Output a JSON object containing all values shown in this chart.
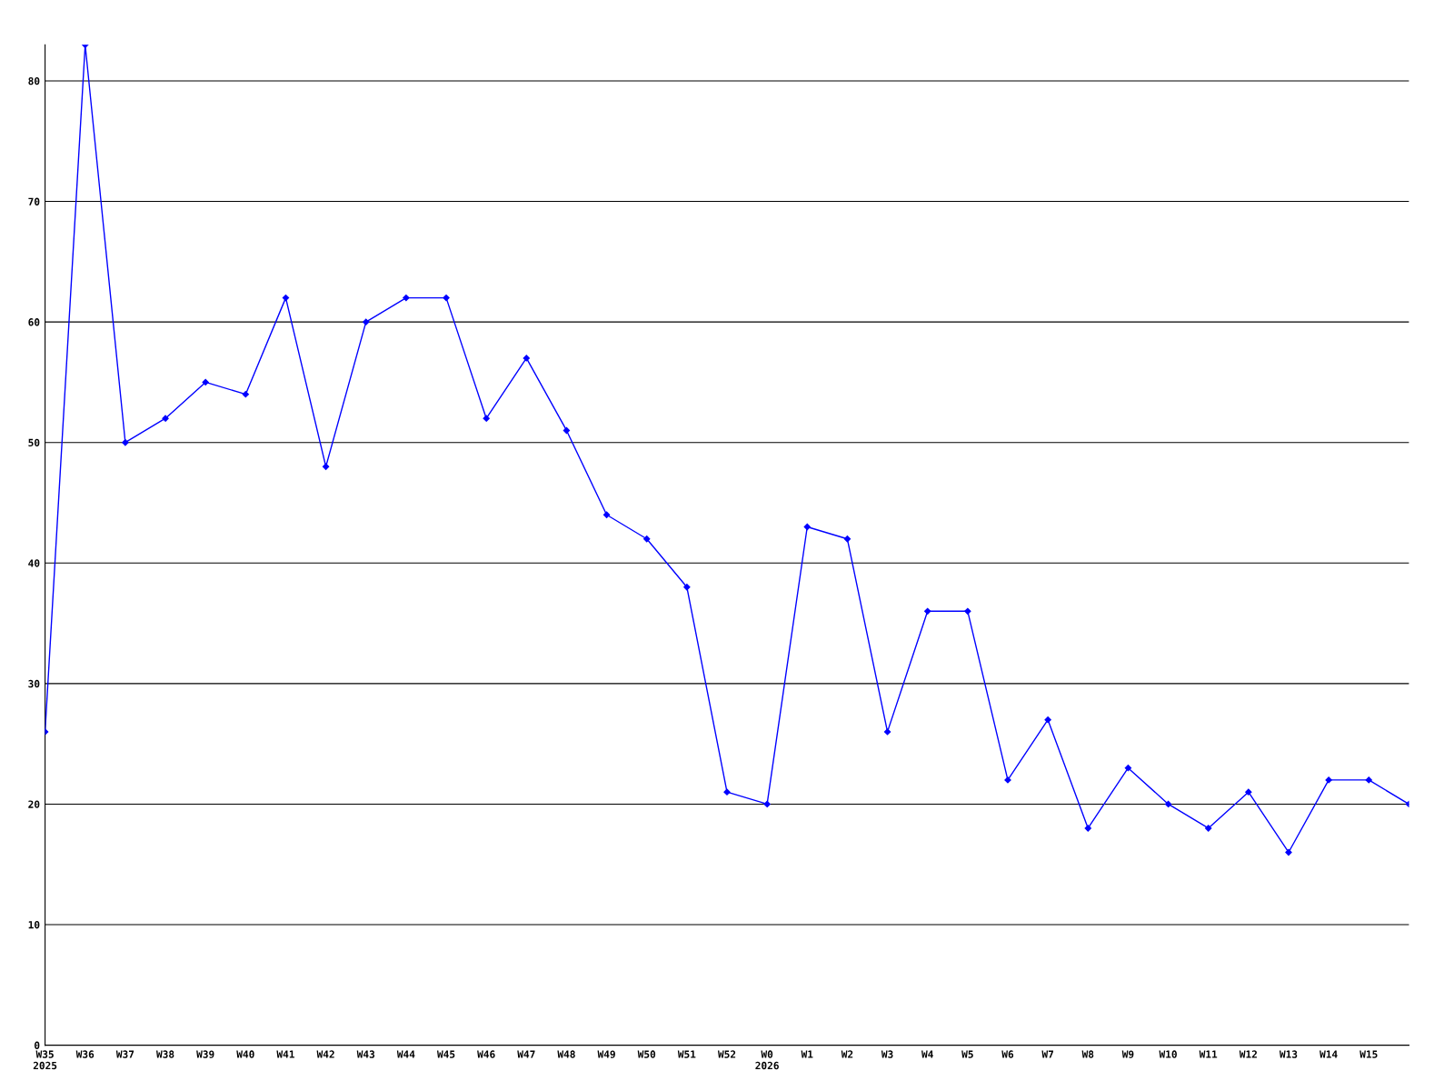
{
  "chart_data": {
    "type": "line",
    "categories": [
      "W35\n2025",
      "W36",
      "W37",
      "W38",
      "W39",
      "W40",
      "W41",
      "W42",
      "W43",
      "W44",
      "W45",
      "W46",
      "W47",
      "W48",
      "W49",
      "W50",
      "W51",
      "W52",
      "W0\n2026",
      "W1",
      "W2",
      "W3",
      "W4",
      "W5",
      "W6",
      "W7",
      "W8",
      "W9",
      "W10",
      "W11",
      "W12",
      "W13",
      "W14",
      "W15",
      null
    ],
    "series": [
      {
        "color": "#0000ff",
        "values": [
          26,
          83,
          50,
          52,
          55,
          54,
          62,
          48,
          60,
          62,
          62,
          52,
          57,
          51,
          44,
          42,
          38,
          21,
          20,
          43,
          42,
          26,
          36,
          36,
          22,
          27,
          18,
          23,
          20,
          18,
          21,
          16,
          22,
          22,
          20
        ]
      }
    ],
    "ylim": [
      0,
      83
    ],
    "yticks": [
      0,
      10,
      20,
      30,
      40,
      50,
      60,
      70,
      80
    ],
    "grid": "y",
    "marker": "diamond",
    "line_style": "solid"
  }
}
